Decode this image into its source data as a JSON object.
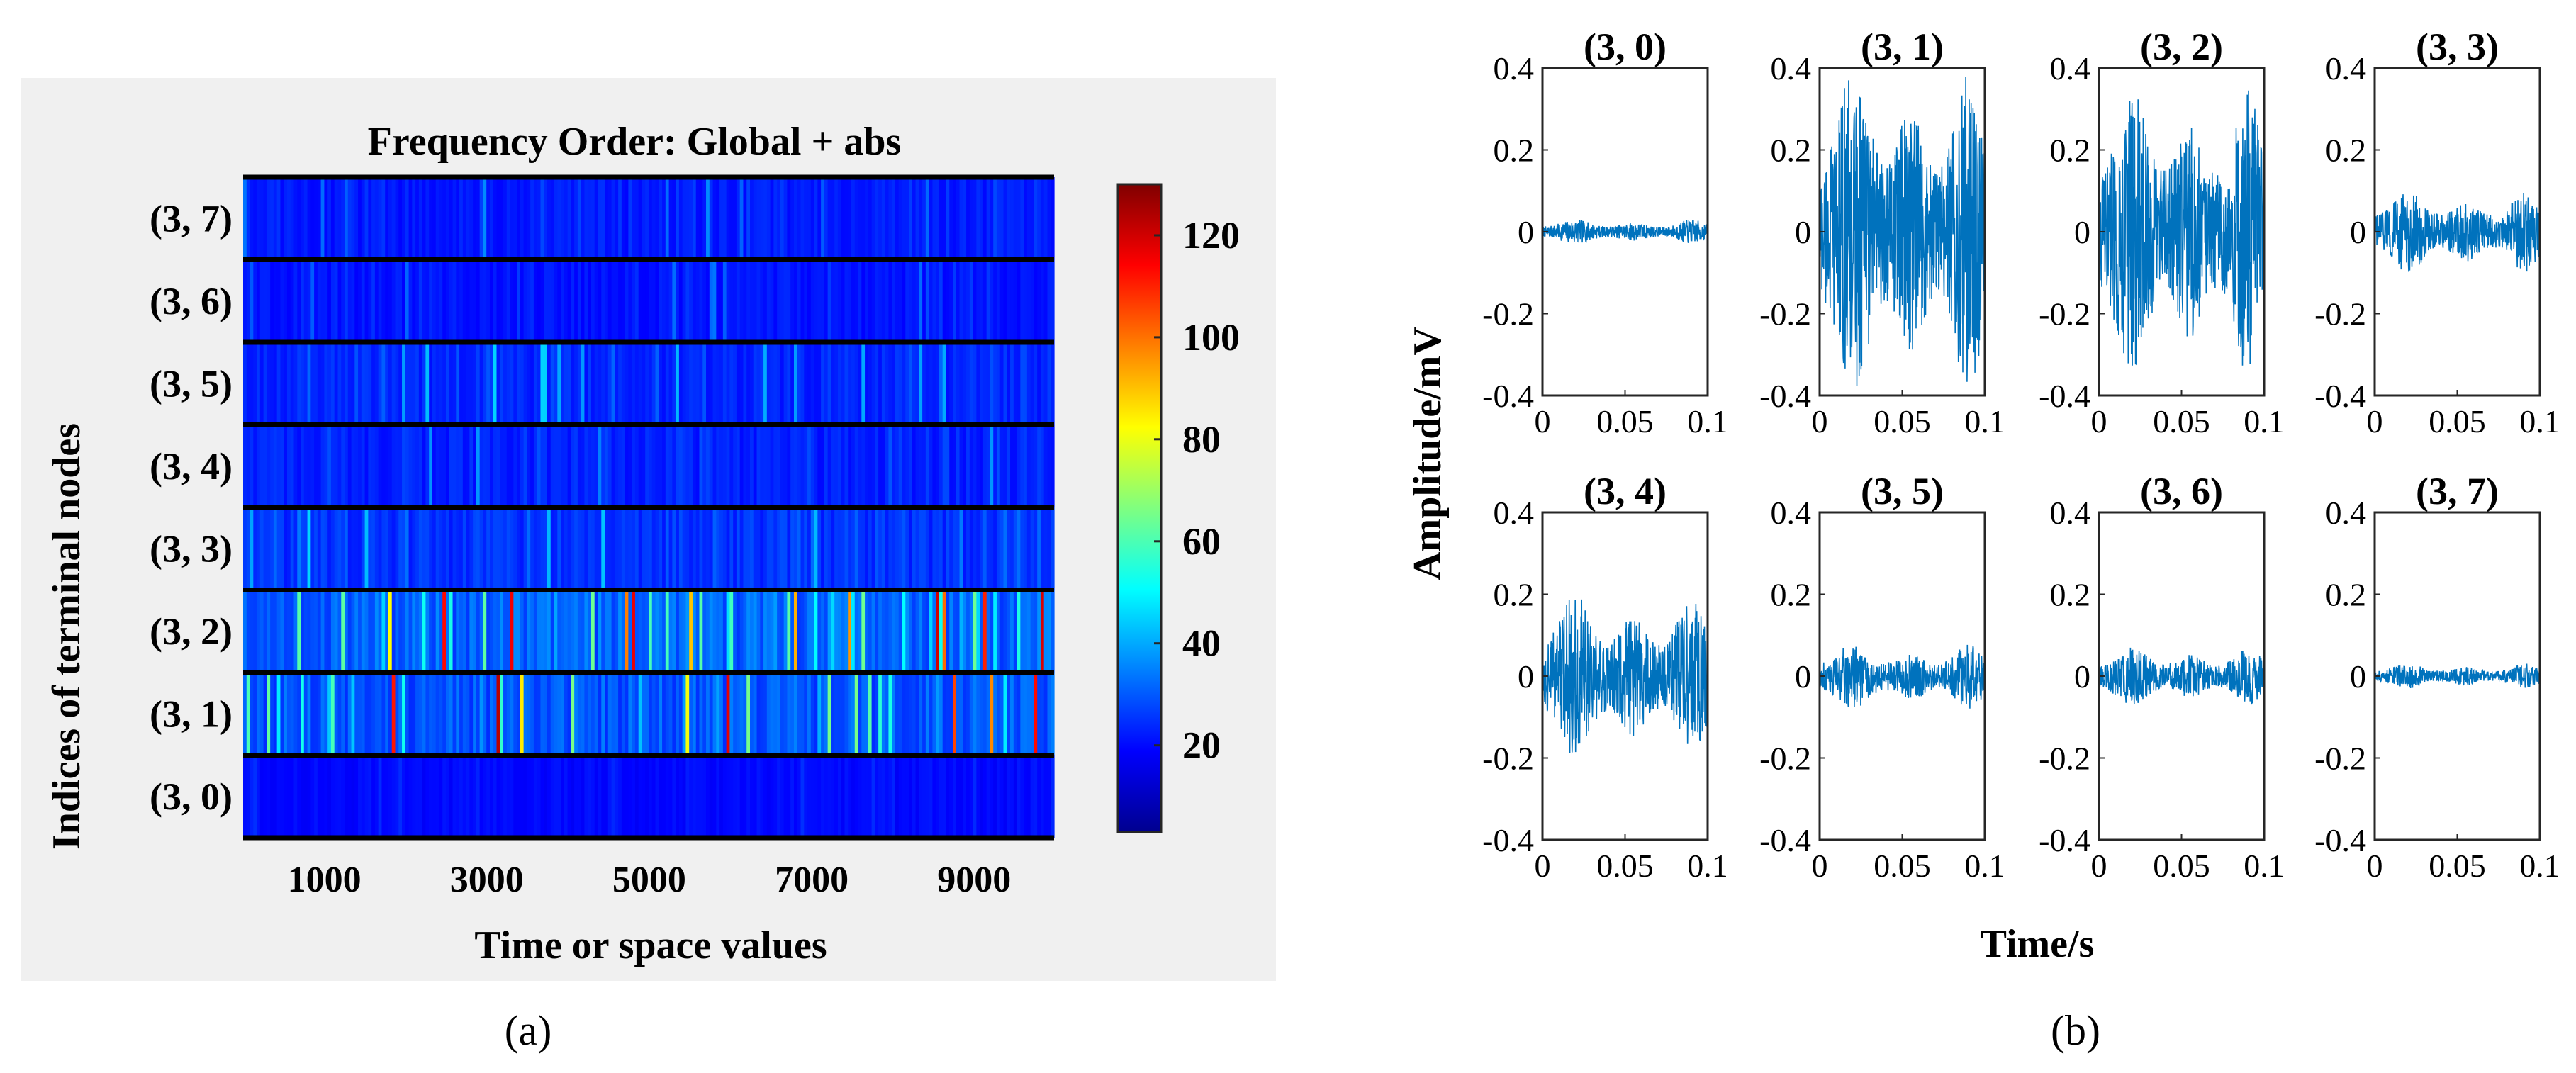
{
  "figure": {
    "label_a": "(a)",
    "label_b": "(b)"
  },
  "chart_data": [
    {
      "type": "heatmap",
      "title": "Frequency Order: Global + abs",
      "xlabel": "Time or space values",
      "ylabel": "Indices of terminal nodes",
      "x_ticks": [
        1000,
        3000,
        5000,
        7000,
        9000
      ],
      "x_tick_labels": [
        "1000",
        "3000",
        "5000",
        "7000",
        "9000"
      ],
      "xlim": [
        0,
        9984
      ],
      "rows_top_to_bottom": [
        "(3, 7)",
        "(3, 6)",
        "(3, 5)",
        "(3, 4)",
        "(3, 3)",
        "(3, 2)",
        "(3, 1)",
        "(3, 0)"
      ],
      "colorbar": {
        "range": [
          3,
          130
        ],
        "ticks": [
          20,
          40,
          60,
          80,
          100,
          120
        ],
        "tick_labels": [
          "20",
          "40",
          "60",
          "80",
          "100",
          "120"
        ],
        "colormap": "jet"
      },
      "row_intensity": {
        "(3, 7)": {
          "base": 10,
          "max": 25
        },
        "(3, 6)": {
          "base": 9,
          "max": 22
        },
        "(3, 5)": {
          "base": 12,
          "max": 35
        },
        "(3, 4)": {
          "base": 11,
          "max": 28
        },
        "(3, 3)": {
          "base": 14,
          "max": 38
        },
        "(3, 2)": {
          "base": 22,
          "max": 122
        },
        "(3, 1)": {
          "base": 20,
          "max": 130
        },
        "(3, 0)": {
          "base": 7,
          "max": 12
        }
      },
      "background": "#f0f0f0"
    },
    {
      "type": "line",
      "layout": "2x4 subplots",
      "xlabel": "Time/s",
      "ylabel": "Amplitude/mV",
      "xlim": [
        0,
        0.1
      ],
      "ylim": [
        -0.4,
        0.4
      ],
      "x_ticks": [
        0,
        0.05,
        0.1
      ],
      "x_tick_labels": [
        "0",
        "0.05",
        "0.1"
      ],
      "y_ticks": [
        0.4,
        0.2,
        0,
        -0.2,
        -0.4
      ],
      "y_tick_labels": [
        "0.4",
        "0.2",
        "0",
        "-0.2",
        "-0.4"
      ],
      "line_color": "#0072BD",
      "subplots": [
        {
          "title": "(3, 0)",
          "peak_amplitude": 0.03
        },
        {
          "title": "(3, 1)",
          "peak_amplitude": 0.4
        },
        {
          "title": "(3, 2)",
          "peak_amplitude": 0.35
        },
        {
          "title": "(3, 3)",
          "peak_amplitude": 0.1
        },
        {
          "title": "(3, 4)",
          "peak_amplitude": 0.2
        },
        {
          "title": "(3, 5)",
          "peak_amplitude": 0.08
        },
        {
          "title": "(3, 6)",
          "peak_amplitude": 0.07
        },
        {
          "title": "(3, 7)",
          "peak_amplitude": 0.03
        }
      ]
    }
  ]
}
